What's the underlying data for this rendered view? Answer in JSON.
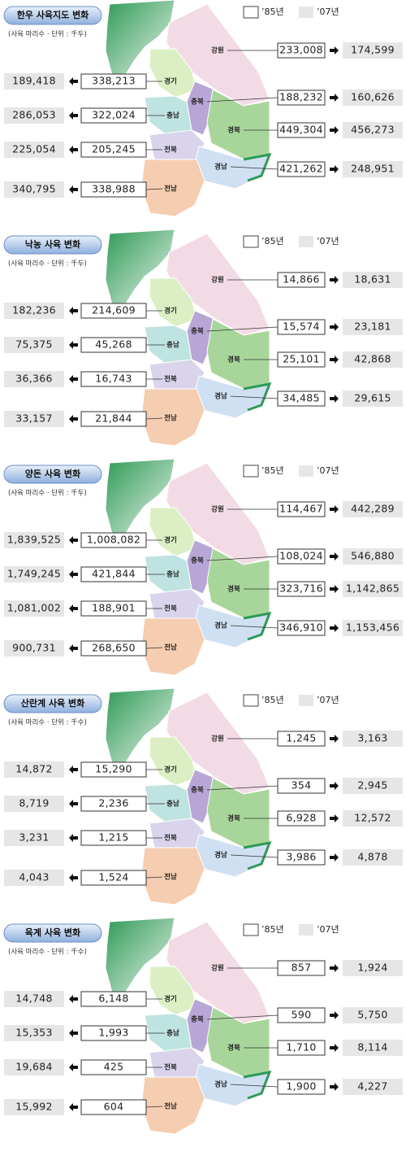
{
  "panels": [
    {
      "title": "한우 사육지도 변화",
      "subtitle": "(사육 마리수 · 단위 : 千두)",
      "legend": [
        "’85년",
        "’07년"
      ],
      "right_regions": [
        {
          "name": "강원",
          "y1985": "233,008",
          "y2007": "174,599"
        },
        {
          "name": "충북",
          "y1985": "188,232",
          "y2007": "160,626"
        },
        {
          "name": "경북",
          "y1985": "449,304",
          "y2007": "456,273"
        },
        {
          "name": "경남",
          "y1985": "421,262",
          "y2007": "248,951"
        }
      ],
      "left_regions": [
        {
          "name": "경기",
          "y1985": "338,213",
          "y2007": "189,418"
        },
        {
          "name": "충남",
          "y1985": "322,024",
          "y2007": "286,053"
        },
        {
          "name": "전북",
          "y1985": "205,245",
          "y2007": "225,054"
        },
        {
          "name": "전남",
          "y1985": "338,988",
          "y2007": "340,795"
        }
      ]
    },
    {
      "title": "낙농 사육 변화",
      "subtitle": "(사육 마리수 · 단위 : 千두)",
      "legend": [
        "’85년",
        "’07년"
      ],
      "right_regions": [
        {
          "name": "강원",
          "y1985": "14,866",
          "y2007": "18,631"
        },
        {
          "name": "충북",
          "y1985": "15,574",
          "y2007": "23,181"
        },
        {
          "name": "경북",
          "y1985": "25,101",
          "y2007": "42,868"
        },
        {
          "name": "경남",
          "y1985": "34,485",
          "y2007": "29,615"
        }
      ],
      "left_regions": [
        {
          "name": "경기",
          "y1985": "214,609",
          "y2007": "182,236"
        },
        {
          "name": "충남",
          "y1985": "45,268",
          "y2007": "75,375"
        },
        {
          "name": "전북",
          "y1985": "16,743",
          "y2007": "36,366"
        },
        {
          "name": "전남",
          "y1985": "21,844",
          "y2007": "33,157"
        }
      ]
    },
    {
      "title": "양돈 사육 변화",
      "subtitle": "(사육 마리수 · 단위 : 千두)",
      "legend": [
        "’85년",
        "’07년"
      ],
      "right_regions": [
        {
          "name": "강원",
          "y1985": "114,467",
          "y2007": "442,289"
        },
        {
          "name": "충북",
          "y1985": "108,024",
          "y2007": "546,880"
        },
        {
          "name": "경북",
          "y1985": "323,716",
          "y2007": "1,142,865"
        },
        {
          "name": "경남",
          "y1985": "346,910",
          "y2007": "1,153,456"
        }
      ],
      "left_regions": [
        {
          "name": "경기",
          "y1985": "1,008,082",
          "y2007": "1,839,525"
        },
        {
          "name": "충남",
          "y1985": "421,844",
          "y2007": "1,749,245"
        },
        {
          "name": "전북",
          "y1985": "188,901",
          "y2007": "1,081,002"
        },
        {
          "name": "전남",
          "y1985": "268,650",
          "y2007": "900,731"
        }
      ]
    },
    {
      "title": "산란계 사육 변화",
      "subtitle": "(사육 마리수 · 단위 : 千수)",
      "legend": [
        "’85년",
        "’07년"
      ],
      "right_regions": [
        {
          "name": "강원",
          "y1985": "1,245",
          "y2007": "3,163"
        },
        {
          "name": "충북",
          "y1985": "354",
          "y2007": "2,945"
        },
        {
          "name": "경북",
          "y1985": "6,928",
          "y2007": "12,572"
        },
        {
          "name": "경남",
          "y1985": "3,986",
          "y2007": "4,878"
        }
      ],
      "left_regions": [
        {
          "name": "경기",
          "y1985": "15,290",
          "y2007": "14,872"
        },
        {
          "name": "충남",
          "y1985": "2,236",
          "y2007": "8,719"
        },
        {
          "name": "전북",
          "y1985": "1,215",
          "y2007": "3,231"
        },
        {
          "name": "전남",
          "y1985": "1,524",
          "y2007": "4,043"
        }
      ]
    },
    {
      "title": "육계 사육 변화",
      "subtitle": "(사육 마리수 · 단위 : 千수)",
      "legend": [
        "’85년",
        "’07년"
      ],
      "right_regions": [
        {
          "name": "강원",
          "y1985": "857",
          "y2007": "1,924"
        },
        {
          "name": "충북",
          "y1985": "590",
          "y2007": "5,750"
        },
        {
          "name": "경북",
          "y1985": "1,710",
          "y2007": "8,114"
        },
        {
          "name": "경남",
          "y1985": "1,900",
          "y2007": "4,227"
        }
      ],
      "left_regions": [
        {
          "name": "경기",
          "y1985": "6,148",
          "y2007": "14,748"
        },
        {
          "name": "충남",
          "y1985": "1,993",
          "y2007": "15,353"
        },
        {
          "name": "전북",
          "y1985": "425",
          "y2007": "19,684"
        },
        {
          "name": "전남",
          "y1985": "604",
          "y2007": "15,992"
        }
      ]
    }
  ]
}
